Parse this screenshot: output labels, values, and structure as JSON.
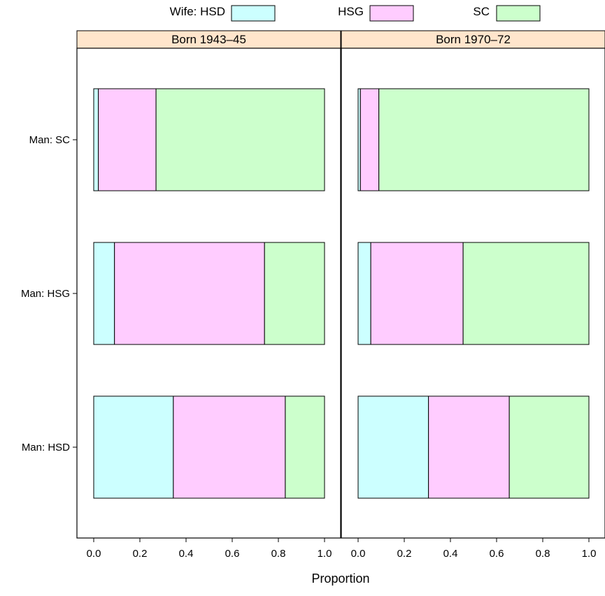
{
  "chart_data": {
    "type": "bar",
    "orientation": "horizontal",
    "stacked": true,
    "xlabel": "Proportion",
    "xlim": [
      0,
      1
    ],
    "x_ticks": [
      "0.0",
      "0.2",
      "0.4",
      "0.6",
      "0.8",
      "1.0"
    ],
    "categories": [
      "Man: HSD",
      "Man: HSG",
      "Man: SC"
    ],
    "legend": {
      "placement": "top",
      "entries": [
        {
          "label": "Wife: HSD",
          "color": "#ccffff"
        },
        {
          "label": "HSG",
          "color": "#ffccff"
        },
        {
          "label": "SC",
          "color": "#ccffcc"
        }
      ]
    },
    "panels": [
      {
        "title": "Born 1943–45",
        "series": [
          {
            "name": "HSD",
            "values": [
              0.345,
              0.09,
              0.02
            ]
          },
          {
            "name": "HSG",
            "values": [
              0.485,
              0.65,
              0.25
            ]
          },
          {
            "name": "SC",
            "values": [
              0.17,
              0.26,
              0.73
            ]
          }
        ]
      },
      {
        "title": "Born 1970–72",
        "series": [
          {
            "name": "HSD",
            "values": [
              0.305,
              0.055,
              0.01
            ]
          },
          {
            "name": "HSG",
            "values": [
              0.35,
              0.4,
              0.08
            ]
          },
          {
            "name": "SC",
            "values": [
              0.345,
              0.545,
              0.91
            ]
          }
        ]
      }
    ],
    "strip_color": "#ffe5cc",
    "grid": false
  }
}
